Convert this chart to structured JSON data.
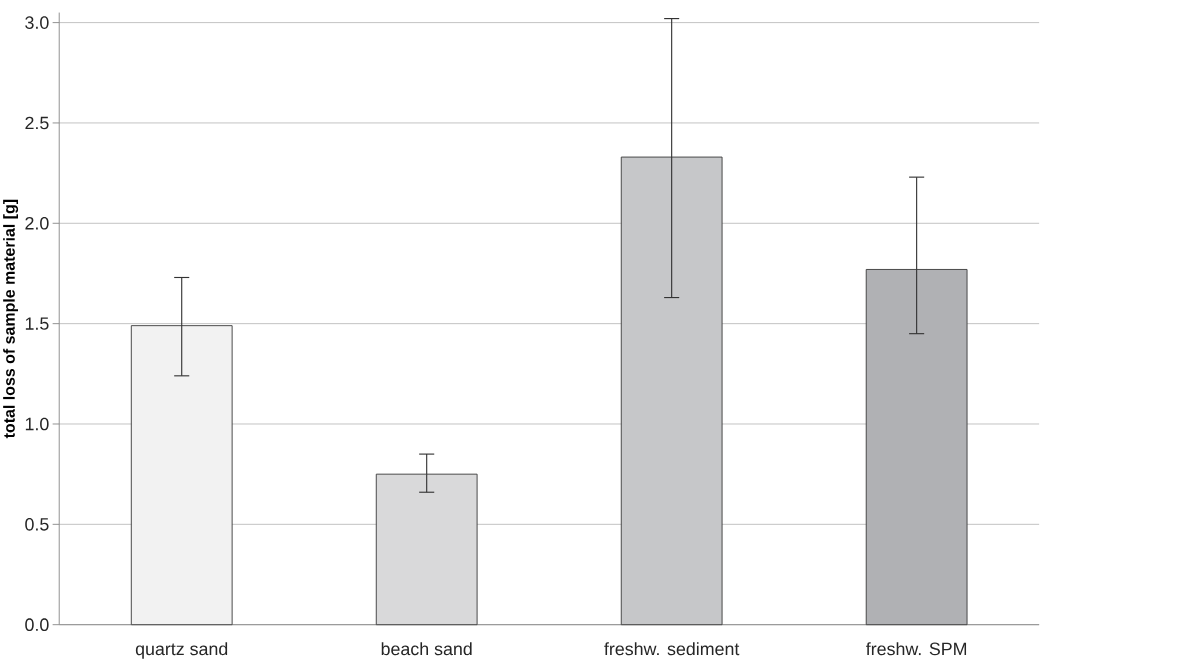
{
  "chart_data": {
    "type": "bar",
    "ylabel": "total loss of sample material [g]",
    "categories": [
      "quartz sand",
      "beach sand",
      "freshw. sediment",
      "freshw. SPM"
    ],
    "values": [
      1.49,
      0.75,
      2.33,
      1.77
    ],
    "colors": [
      "#f2f2f2",
      "#d9d9da",
      "#c6c7c9",
      "#b0b1b4"
    ],
    "errors": [
      [
        1.24,
        1.73
      ],
      [
        0.66,
        0.85
      ],
      [
        1.63,
        3.02
      ],
      [
        1.45,
        2.23
      ]
    ],
    "ylim": [
      0,
      3.05
    ],
    "yticks": [
      {
        "value": 0,
        "label": "0.0"
      },
      {
        "value": 0.5,
        "label": "0.5"
      },
      {
        "value": 1,
        "label": "1.0"
      },
      {
        "value": 1.5,
        "label": "1.5"
      },
      {
        "value": 2,
        "label": "2.0"
      },
      {
        "value": 2.5,
        "label": "2.5"
      },
      {
        "value": 3,
        "label": "3.0"
      }
    ],
    "grid": "y"
  }
}
